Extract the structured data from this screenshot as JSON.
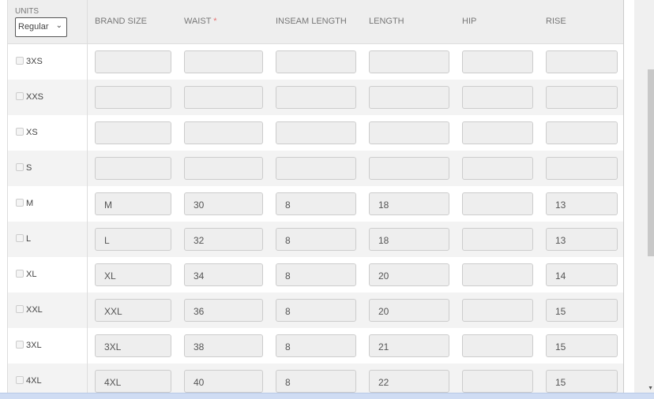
{
  "header": {
    "units_label": "UNITS",
    "units_value": "Regular",
    "columns": [
      "BRAND SIZE",
      "WAIST",
      "INSEAM LENGTH",
      "LENGTH",
      "HIP",
      "RISE"
    ],
    "required_mark": "*"
  },
  "rows": [
    {
      "size": "3XS",
      "values": [
        "",
        "",
        "",
        "",
        "",
        ""
      ]
    },
    {
      "size": "XXS",
      "values": [
        "",
        "",
        "",
        "",
        "",
        ""
      ]
    },
    {
      "size": "XS",
      "values": [
        "",
        "",
        "",
        "",
        "",
        ""
      ]
    },
    {
      "size": "S",
      "values": [
        "",
        "",
        "",
        "",
        "",
        ""
      ]
    },
    {
      "size": "M",
      "values": [
        "M",
        "30",
        "8",
        "18",
        "",
        "13"
      ]
    },
    {
      "size": "L",
      "values": [
        "L",
        "32",
        "8",
        "18",
        "",
        "13"
      ]
    },
    {
      "size": "XL",
      "values": [
        "XL",
        "34",
        "8",
        "20",
        "",
        "14"
      ]
    },
    {
      "size": "XXL",
      "values": [
        "XXL",
        "36",
        "8",
        "20",
        "",
        "15"
      ]
    },
    {
      "size": "3XL",
      "values": [
        "3XL",
        "38",
        "8",
        "21",
        "",
        "15"
      ]
    },
    {
      "size": "4XL",
      "values": [
        "4XL",
        "40",
        "8",
        "22",
        "",
        "15"
      ]
    }
  ]
}
